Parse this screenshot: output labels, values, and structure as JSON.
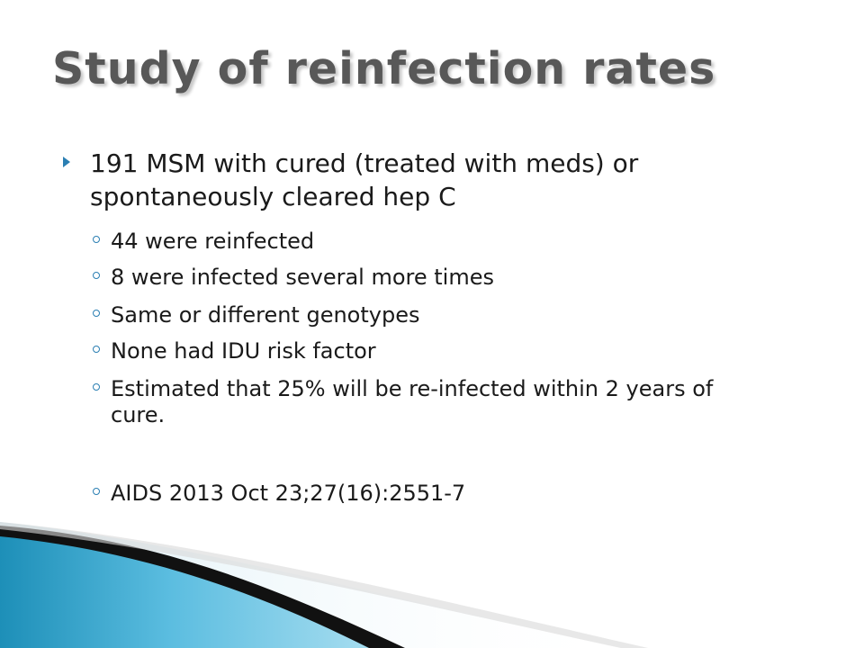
{
  "slide": {
    "title": "Study of reinfection rates",
    "bullet": "191 MSM with cured (treated with meds) or spontaneously cleared hep C",
    "sub_bullets": [
      "44 were reinfected",
      "8 were infected several more times",
      "Same or different genotypes",
      "None had IDU risk factor",
      "Estimated that 25% will be re-infected within 2 years of cure.",
      "AIDS 2013 Oct 23;27(16):2551-7"
    ]
  },
  "colors": {
    "accent": "#2b7fb3",
    "title": "#585858"
  }
}
